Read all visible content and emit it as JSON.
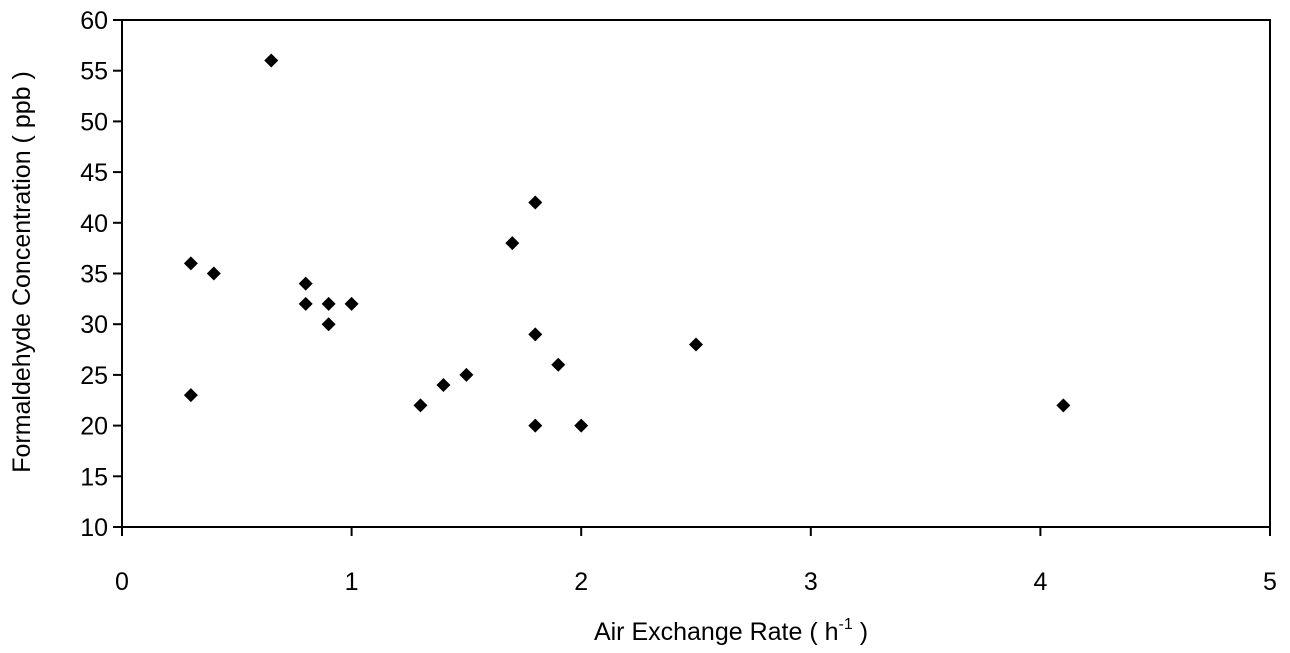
{
  "chart_data": {
    "type": "scatter",
    "title": "",
    "xlabel": "Air Exchange Rate ( h",
    "xlabel_superscript": "-1",
    "xlabel_suffix": " )",
    "ylabel": "Formaldehyde Concentration ( ppb )",
    "xlim": [
      0,
      5
    ],
    "ylim": [
      10,
      60
    ],
    "x_ticks": [
      "0",
      "1",
      "2",
      "3",
      "4",
      "5"
    ],
    "y_ticks": [
      "10",
      "15",
      "20",
      "25",
      "30",
      "35",
      "40",
      "45",
      "50",
      "55",
      "60"
    ],
    "grid": false,
    "legend": "none",
    "marker": "diamond",
    "marker_color": "#000000",
    "series": [
      {
        "points": [
          {
            "x": 0.3,
            "y": 36
          },
          {
            "x": 0.3,
            "y": 23
          },
          {
            "x": 0.4,
            "y": 35
          },
          {
            "x": 0.65,
            "y": 56
          },
          {
            "x": 0.8,
            "y": 34
          },
          {
            "x": 0.8,
            "y": 32
          },
          {
            "x": 0.9,
            "y": 32
          },
          {
            "x": 0.9,
            "y": 30
          },
          {
            "x": 1.0,
            "y": 32
          },
          {
            "x": 1.3,
            "y": 22
          },
          {
            "x": 1.4,
            "y": 24
          },
          {
            "x": 1.5,
            "y": 25
          },
          {
            "x": 1.7,
            "y": 38
          },
          {
            "x": 1.8,
            "y": 42
          },
          {
            "x": 1.8,
            "y": 29
          },
          {
            "x": 1.8,
            "y": 20
          },
          {
            "x": 1.9,
            "y": 26
          },
          {
            "x": 2.0,
            "y": 20
          },
          {
            "x": 2.5,
            "y": 28
          },
          {
            "x": 4.1,
            "y": 22
          }
        ]
      }
    ]
  }
}
